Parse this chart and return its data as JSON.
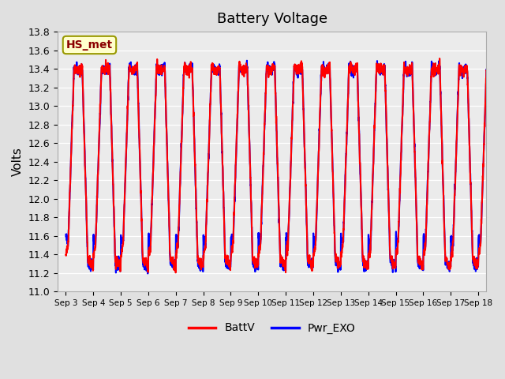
{
  "title": "Battery Voltage",
  "ylabel": "Volts",
  "ylim": [
    11.0,
    13.8
  ],
  "yticks": [
    11.0,
    11.2,
    11.4,
    11.6,
    11.8,
    12.0,
    12.2,
    12.4,
    12.6,
    12.8,
    13.0,
    13.2,
    13.4,
    13.6,
    13.8
  ],
  "x_labels": [
    "Sep 3",
    "Sep 4",
    "Sep 5",
    "Sep 6",
    "Sep 7",
    "Sep 8",
    "Sep 9",
    "Sep 10",
    "Sep 11",
    "Sep 12",
    "Sep 13",
    "Sep 14",
    "Sep 15",
    "Sep 16",
    "Sep 17",
    "Sep 18"
  ],
  "legend_labels": [
    "BattV",
    "Pwr_EXO"
  ],
  "annotation_text": "HS_met",
  "annotation_color": "#8B0000",
  "annotation_bg": "#FFFFCC",
  "annotation_border": "#999900",
  "line_color_battv": "red",
  "line_color_pwr": "blue",
  "line_width": 1.5,
  "bg_color": "#E0E0E0",
  "plot_bg_color": "#EBEBEB",
  "n_days": 16,
  "samples_per_day": 144,
  "title_fontsize": 13,
  "axis_label_fontsize": 11
}
